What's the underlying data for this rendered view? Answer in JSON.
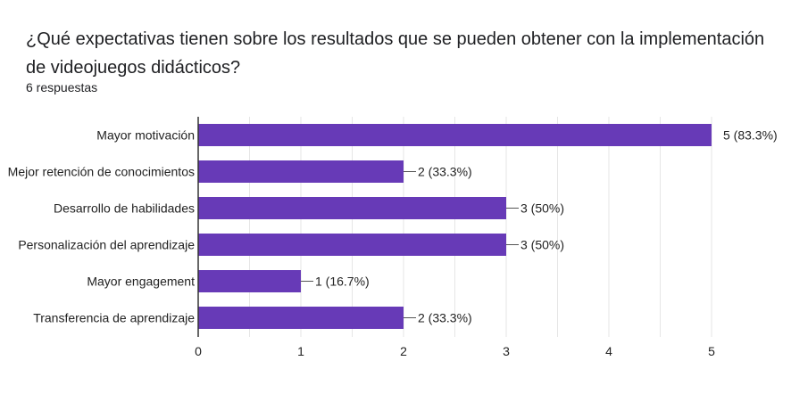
{
  "question": {
    "title": "¿Qué expectativas tienen sobre los resultados que se pueden obtener con la implementación de videojuegos didácticos?",
    "responses": "6 respuestas"
  },
  "colors": {
    "bar": "#673ab7",
    "grid": "#e6e6e6",
    "axis": "#333333",
    "text": "#222222"
  },
  "chart_data": {
    "type": "bar",
    "orientation": "horizontal",
    "categories": [
      "Mayor motivación",
      "Mejor retención de conocimientos",
      "Desarrollo de habilidades",
      "Personalización del aprendizaje",
      "Mayor engagement",
      "Transferencia de aprendizaje"
    ],
    "values": [
      5,
      2,
      3,
      3,
      1,
      2
    ],
    "data_labels": [
      "5 (83.3%)",
      "2 (33.3%)",
      "3 (50%)",
      "3 (50%)",
      "1 (16.7%)",
      "2 (33.3%)"
    ],
    "xlim": [
      0,
      5
    ],
    "x_ticks": [
      0,
      1,
      2,
      3,
      4,
      5
    ],
    "grid": true,
    "legend": "none"
  }
}
